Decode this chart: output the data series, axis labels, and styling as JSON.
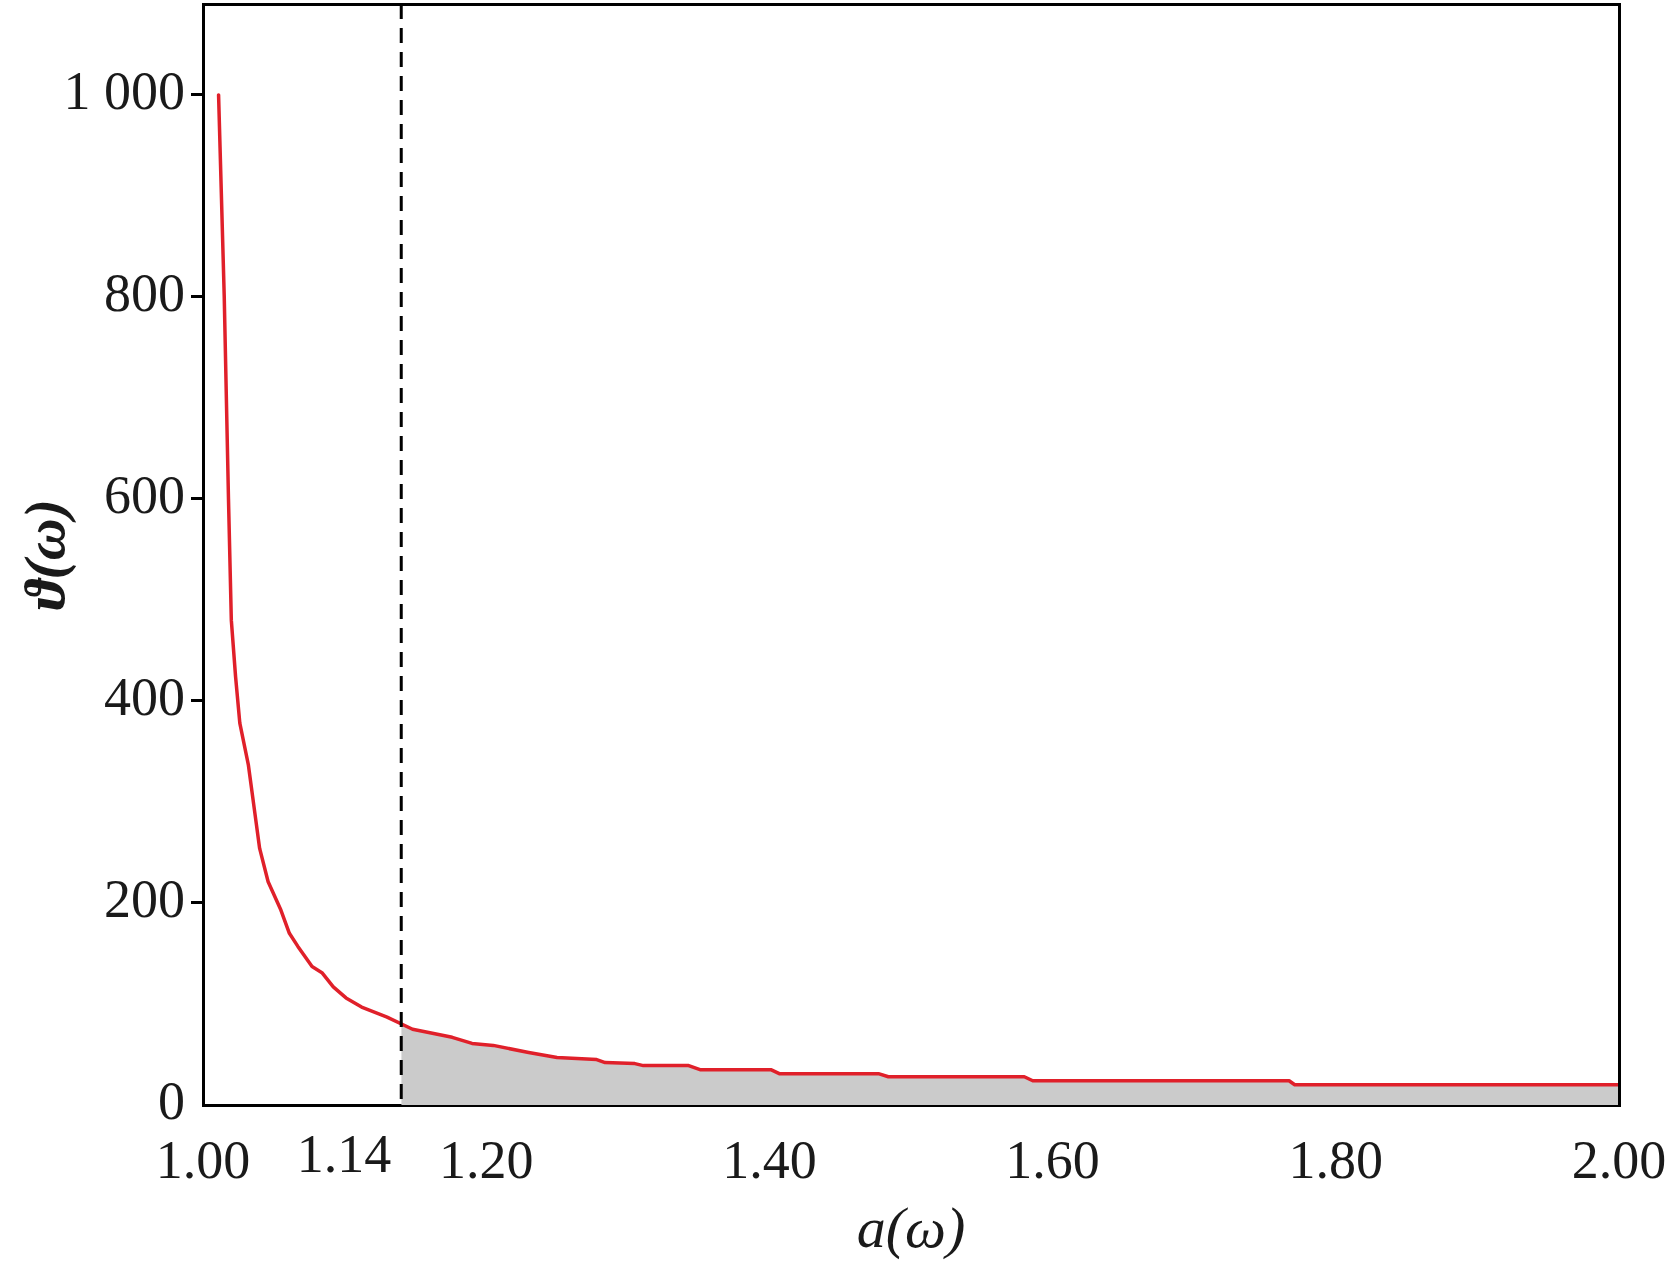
{
  "chart_data": {
    "type": "line",
    "xlabel": "a(ω)",
    "ylabel": "ϑ(ω)",
    "series": [
      {
        "type": "line",
        "color": "#e0202a",
        "x": [
          1.011,
          1.015,
          1.018,
          1.02,
          1.023,
          1.026,
          1.032,
          1.04,
          1.046,
          1.055,
          1.061,
          1.067,
          1.077,
          1.084,
          1.092,
          1.101,
          1.112,
          1.13,
          1.148,
          1.162,
          1.176,
          1.19,
          1.205,
          1.23,
          1.25,
          1.278,
          1.284,
          1.305,
          1.311,
          1.343,
          1.351,
          1.401,
          1.407,
          1.477,
          1.484,
          1.58,
          1.586,
          1.767,
          1.771,
          2.0
        ],
        "values": [
          1000,
          800,
          600,
          480,
          424,
          378,
          337,
          254,
          221,
          193,
          170,
          157,
          137,
          131,
          117,
          106,
          97,
          87,
          75,
          71,
          67,
          61,
          59,
          52,
          47,
          45,
          42,
          41,
          39,
          39,
          35,
          35,
          31,
          31,
          28,
          28,
          24,
          24,
          20,
          20
        ]
      },
      {
        "type": "area",
        "color": "#cbcbcb",
        "x": [
          1.14,
          1.148,
          1.162,
          1.176,
          1.19,
          1.205,
          1.23,
          1.25,
          1.278,
          1.284,
          1.305,
          1.311,
          1.343,
          1.351,
          1.401,
          1.407,
          1.477,
          1.484,
          1.58,
          1.586,
          1.767,
          1.771,
          2.0
        ],
        "values": [
          80,
          75,
          71,
          67,
          61,
          59,
          52,
          47,
          45,
          42,
          41,
          39,
          39,
          35,
          35,
          31,
          31,
          28,
          28,
          24,
          24,
          20,
          20
        ]
      }
    ],
    "xlim": [
      1,
      2
    ],
    "ylim": [
      0,
      1090
    ],
    "xticks": [
      {
        "value": 1,
        "label": "1.00"
      },
      {
        "value": 1.2,
        "label": "1.20"
      },
      {
        "value": 1.4,
        "label": "1.40"
      },
      {
        "value": 1.6,
        "label": "1.60"
      },
      {
        "value": 1.8,
        "label": "1.80"
      },
      {
        "value": 2,
        "label": "2.00"
      }
    ],
    "yticks": [
      0,
      200,
      400,
      600,
      800,
      {
        "value": 1000,
        "label": "1 000"
      }
    ],
    "ref_lines": [
      {
        "axis": "x",
        "value": 1.14,
        "label": "1.14",
        "color": "#000000",
        "line_style": "dashed"
      }
    ]
  }
}
